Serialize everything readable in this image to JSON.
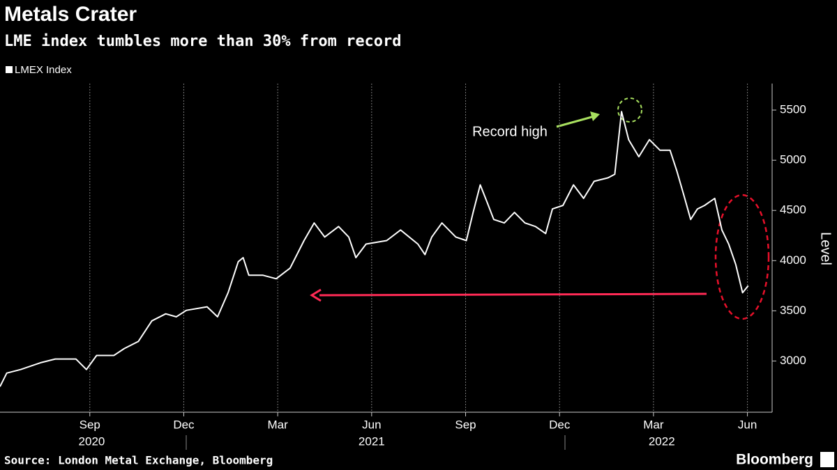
{
  "chart_data": {
    "type": "line",
    "title": "Metals Crater",
    "subtitle": "LME index tumbles more than 30% from record",
    "y_label": "Level",
    "source": "Source: London Metal Exchange, Bloomberg",
    "brand": "Bloomberg",
    "annotations": [
      "Record high"
    ],
    "x": [
      2020.428,
      2020.446,
      2020.483,
      2020.538,
      2020.575,
      2020.63,
      2020.658,
      2020.685,
      2020.731,
      2020.759,
      2020.796,
      2020.832,
      2020.869,
      2020.897,
      2020.924,
      2020.979,
      2021.007,
      2021.035,
      2021.062,
      2021.075,
      2021.09,
      2021.127,
      2021.163,
      2021.2,
      2021.237,
      2021.264,
      2021.292,
      2021.329,
      2021.356,
      2021.375,
      2021.402,
      2021.457,
      2021.494,
      2021.54,
      2021.559,
      2021.577,
      2021.604,
      2021.641,
      2021.669,
      2021.687,
      2021.706,
      2021.724,
      2021.742,
      2021.77,
      2021.797,
      2021.825,
      2021.853,
      2021.88,
      2021.898,
      2021.926,
      2021.954,
      2021.981,
      2022.009,
      2022.046,
      2022.064,
      2022.082,
      2022.101,
      2022.128,
      2022.156,
      2022.184,
      2022.211,
      2022.229,
      2022.248,
      2022.266,
      2022.284,
      2022.303,
      2022.33,
      2022.349,
      2022.367,
      2022.386,
      2022.404,
      2022.419
    ],
    "series": [
      {
        "name": "LMEX Index",
        "color": "#ffffff",
        "values": [
          2745,
          2880,
          2915,
          2985,
          3020,
          3020,
          2915,
          3055,
          3055,
          3125,
          3195,
          3400,
          3470,
          3440,
          3505,
          3540,
          3440,
          3680,
          3990,
          4030,
          3855,
          3855,
          3820,
          3925,
          4200,
          4375,
          4235,
          4340,
          4235,
          4030,
          4165,
          4200,
          4305,
          4165,
          4060,
          4235,
          4375,
          4235,
          4200,
          4480,
          4755,
          4585,
          4410,
          4375,
          4480,
          4375,
          4340,
          4270,
          4515,
          4550,
          4755,
          4620,
          4790,
          4825,
          4860,
          5485,
          5205,
          5035,
          5205,
          5100,
          5100,
          4895,
          4650,
          4410,
          4515,
          4550,
          4620,
          4305,
          4165,
          3960,
          3680,
          3750
        ]
      }
    ],
    "xlim": [
      2020.428,
      2022.479
    ],
    "xticks": [
      {
        "value": 2020.667,
        "label": "Sep"
      },
      {
        "value": 2020.917,
        "label": "Dec"
      },
      {
        "value": 2021.167,
        "label": "Mar"
      },
      {
        "value": 2021.417,
        "label": "Jun"
      },
      {
        "value": 2021.667,
        "label": "Sep"
      },
      {
        "value": 2021.917,
        "label": "Dec"
      },
      {
        "value": 2022.167,
        "label": "Mar"
      },
      {
        "value": 2022.417,
        "label": "Jun"
      }
    ],
    "xticks_year": [
      {
        "value": 2020.672,
        "label": "2020"
      },
      {
        "value": 2021.417,
        "label": "2021"
      },
      {
        "value": 2022.189,
        "label": "2022"
      }
    ],
    "ylim": [
      2490,
      5764
    ],
    "yticks": [
      3000,
      3500,
      4000,
      4500,
      5000,
      5500
    ],
    "grid": true
  }
}
